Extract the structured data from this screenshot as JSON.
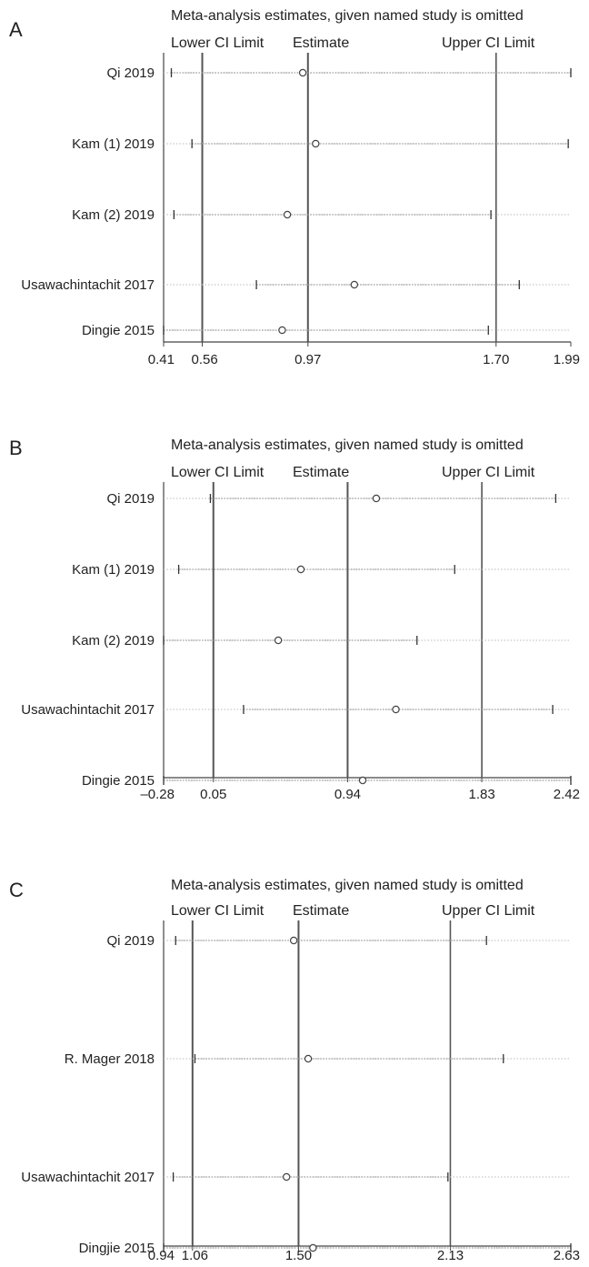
{
  "chart_data": [
    {
      "type": "scatter",
      "panel_label": "A",
      "title": "Meta-analysis estimates, given named study is omitted",
      "legend": [
        "Lower CI Limit",
        "Estimate",
        "Upper CI Limit"
      ],
      "xlim": [
        0.41,
        1.99
      ],
      "xticks": [
        0.41,
        0.56,
        0.97,
        1.7,
        1.99
      ],
      "xtick_labels": [
        "0.41",
        "0.56",
        "0.97",
        "1.70",
        "1.99"
      ],
      "reference_lines": [
        0.56,
        0.97,
        1.7
      ],
      "grid": false,
      "studies": [
        {
          "name": "Qi 2019",
          "lower": 0.44,
          "estimate": 0.95,
          "upper": 1.99
        },
        {
          "name": "Kam (1) 2019",
          "lower": 0.52,
          "estimate": 1.0,
          "upper": 1.98
        },
        {
          "name": "Kam (2) 2019",
          "lower": 0.45,
          "estimate": 0.89,
          "upper": 1.68
        },
        {
          "name": "Usawachintachit 2017",
          "lower": 0.77,
          "estimate": 1.15,
          "upper": 1.79
        },
        {
          "name": "Dingie 2015",
          "lower": 0.41,
          "estimate": 0.87,
          "upper": 1.67
        }
      ]
    },
    {
      "type": "scatter",
      "panel_label": "B",
      "title": "Meta-analysis estimates, given named study is omitted",
      "legend": [
        "Lower CI Limit",
        "Estimate",
        "Upper CI Limit"
      ],
      "xlim": [
        -0.28,
        2.42
      ],
      "xticks": [
        -0.28,
        0.05,
        0.94,
        1.83,
        2.42
      ],
      "xtick_labels": [
        "–0.28",
        "0.05",
        "0.94",
        "1.83",
        "2.42"
      ],
      "reference_lines": [
        0.05,
        0.94,
        1.83
      ],
      "grid": false,
      "studies": [
        {
          "name": "Qi 2019",
          "lower": 0.03,
          "estimate": 1.13,
          "upper": 2.32
        },
        {
          "name": "Kam (1) 2019",
          "lower": -0.18,
          "estimate": 0.63,
          "upper": 1.65
        },
        {
          "name": "Kam (2) 2019",
          "lower": -0.28,
          "estimate": 0.48,
          "upper": 1.4
        },
        {
          "name": "Usawachintachit 2017",
          "lower": 0.25,
          "estimate": 1.26,
          "upper": 2.3
        },
        {
          "name": "Dingie 2015",
          "lower": -0.28,
          "estimate": 1.04,
          "upper": 2.42
        }
      ]
    },
    {
      "type": "scatter",
      "panel_label": "C",
      "title": "Meta-analysis estimates, given named study is omitted",
      "legend": [
        "Lower CI Limit",
        "Estimate",
        "Upper CI Limit"
      ],
      "xlim": [
        0.94,
        2.63
      ],
      "xticks": [
        0.94,
        1.06,
        1.5,
        2.13,
        2.63
      ],
      "xtick_labels": [
        "0.94",
        "1.06",
        "1.50",
        "2.13",
        "2.63"
      ],
      "reference_lines": [
        1.06,
        1.5,
        2.13
      ],
      "grid": false,
      "studies": [
        {
          "name": "Qi 2019",
          "lower": 0.99,
          "estimate": 1.48,
          "upper": 2.28
        },
        {
          "name": "R. Mager 2018",
          "lower": 1.07,
          "estimate": 1.54,
          "upper": 2.35
        },
        {
          "name": "Usawachintachit 2017",
          "lower": 0.98,
          "estimate": 1.45,
          "upper": 2.12
        },
        {
          "name": "Dingjie 2015",
          "lower": 0.94,
          "estimate": 1.56,
          "upper": 2.63
        }
      ]
    }
  ]
}
